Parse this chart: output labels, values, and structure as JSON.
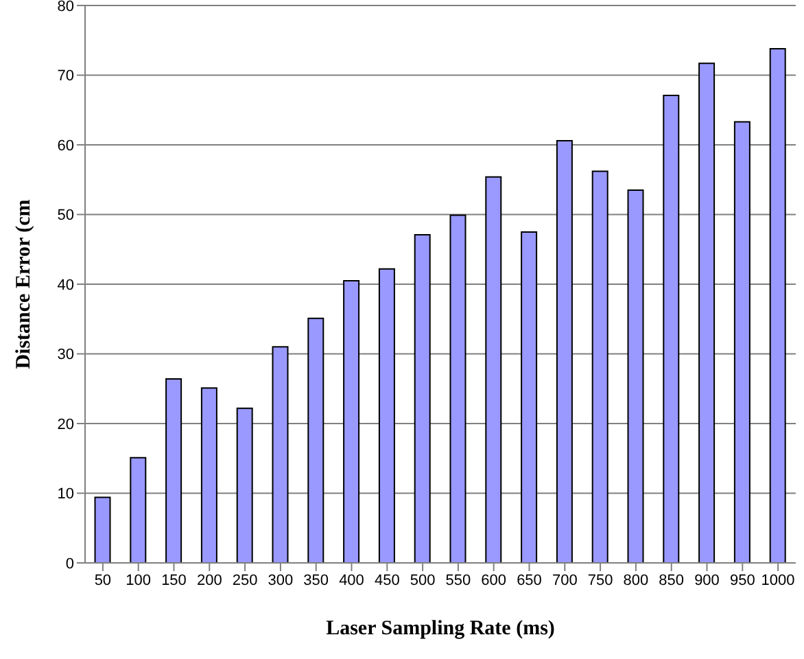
{
  "chart_data": {
    "type": "bar",
    "xlabel": "Laser Sampling Rate (ms)",
    "ylabel": "Distance Error (cm",
    "categories": [
      "50",
      "100",
      "150",
      "200",
      "250",
      "300",
      "350",
      "400",
      "450",
      "500",
      "550",
      "600",
      "650",
      "700",
      "750",
      "800",
      "850",
      "900",
      "950",
      "1000"
    ],
    "values": [
      9.4,
      15.1,
      26.4,
      25.1,
      22.2,
      31.0,
      35.1,
      40.5,
      42.2,
      47.1,
      49.9,
      55.4,
      47.5,
      60.6,
      56.2,
      53.5,
      67.1,
      71.7,
      63.3,
      73.8
    ],
    "color": "#9999ff",
    "ylim": [
      0,
      80
    ],
    "yticks": [
      0,
      10,
      20,
      30,
      40,
      50,
      60,
      70,
      80
    ],
    "grid": "y",
    "legend": false
  }
}
